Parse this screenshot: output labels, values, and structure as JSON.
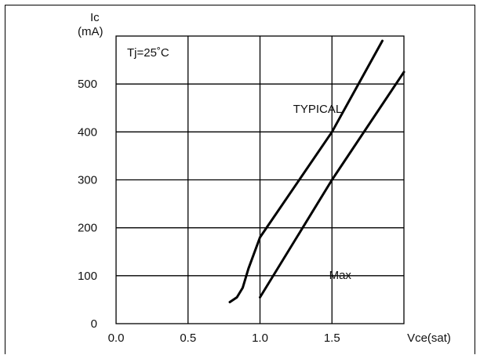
{
  "chart_data": {
    "type": "line",
    "ylabel_line1": "Ic",
    "ylabel_line2": "(mA)",
    "xlabel": "Vce(sat)",
    "condition": "Tj=25˚C",
    "xlim": [
      0.0,
      2.0
    ],
    "ylim": [
      0,
      600
    ],
    "x_ticks": [
      "0.0",
      "0.5",
      "1.0",
      "1.5"
    ],
    "y_ticks": [
      "0",
      "100",
      "200",
      "300",
      "400",
      "500"
    ],
    "grid": true,
    "series": [
      {
        "name": "TYPICAL",
        "x": [
          0.79,
          0.84,
          0.88,
          0.92,
          1.0,
          1.5,
          1.85
        ],
        "y": [
          45,
          55,
          75,
          115,
          180,
          400,
          590
        ]
      },
      {
        "name": "Max",
        "x": [
          1.0,
          1.5,
          2.0
        ],
        "y": [
          55,
          300,
          525
        ]
      }
    ],
    "annotations": [
      {
        "text": "TYPICAL",
        "x": 1.23,
        "y": 440
      },
      {
        "text": "Max",
        "x": 1.48,
        "y": 93
      }
    ]
  }
}
